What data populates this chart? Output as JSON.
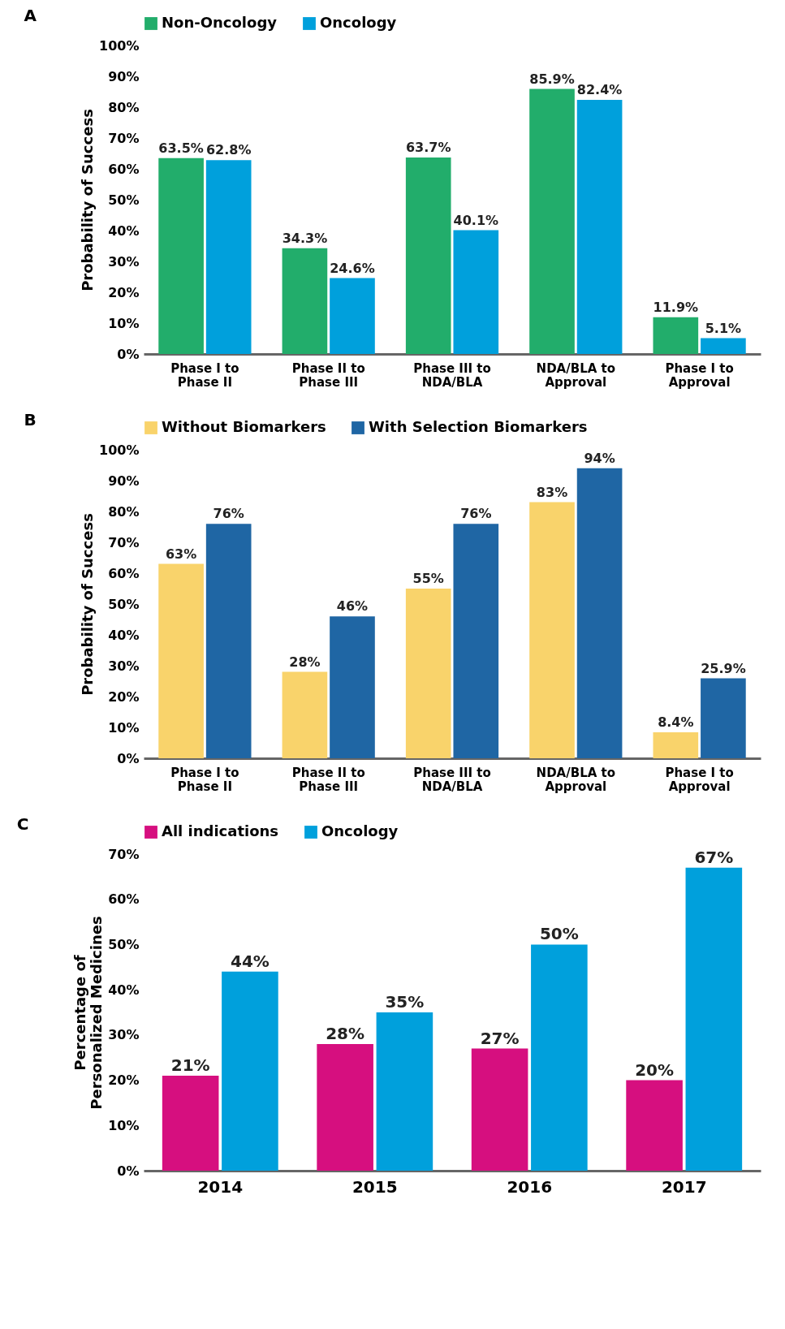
{
  "chart_data": [
    {
      "type": "bar",
      "title": "A",
      "ylabel": "Probability of Success",
      "categories": [
        "Phase I to\nPhase II",
        "Phase II to\nPhase III",
        "Phase III to\nNDA/BLA",
        "NDA/BLA to\nApproval",
        "Phase I to\nApproval"
      ],
      "series": [
        {
          "name": "Non-Oncology",
          "color": "#22ad6b",
          "values": [
            63.5,
            34.3,
            63.7,
            85.9,
            11.9
          ],
          "value_labels": [
            "63.5%",
            "34.3%",
            "63.7%",
            "85.9%",
            "11.9%"
          ]
        },
        {
          "name": "Oncology",
          "color": "#00a0dc",
          "values": [
            62.8,
            24.6,
            40.1,
            82.4,
            5.1
          ],
          "value_labels": [
            "62.8%",
            "24.6%",
            "40.1%",
            "82.4%",
            "5.1%"
          ]
        }
      ],
      "ylim": [
        0,
        100
      ],
      "yticks": [
        {
          "value": 0,
          "label": "0%"
        },
        {
          "value": 10,
          "label": "10%"
        },
        {
          "value": 20,
          "label": "20%"
        },
        {
          "value": 30,
          "label": "30%"
        },
        {
          "value": 40,
          "label": "40%"
        },
        {
          "value": 50,
          "label": "50%"
        },
        {
          "value": 60,
          "label": "60%"
        },
        {
          "value": 70,
          "label": "70%"
        },
        {
          "value": 80,
          "label": "80%"
        },
        {
          "value": 90,
          "label": "90%"
        },
        {
          "value": 100,
          "label": "100%"
        }
      ],
      "legend": "top",
      "grid": false
    },
    {
      "type": "bar",
      "title": "B",
      "ylabel": "Probability of Success",
      "categories": [
        "Phase I to\nPhase II",
        "Phase II to\nPhase III",
        "Phase III to\nNDA/BLA",
        "NDA/BLA to\nApproval",
        "Phase I to\nApproval"
      ],
      "series": [
        {
          "name": "Without Biomarkers",
          "color": "#f9d36b",
          "values": [
            63,
            28,
            55,
            83,
            8.4
          ],
          "value_labels": [
            "63%",
            "28%",
            "55%",
            "83%",
            "8.4%"
          ]
        },
        {
          "name": "With Selection Biomarkers",
          "color": "#1f66a4",
          "values": [
            76,
            46,
            76,
            94,
            25.9
          ],
          "value_labels": [
            "76%",
            "46%",
            "76%",
            "94%",
            "25.9%"
          ]
        }
      ],
      "ylim": [
        0,
        100
      ],
      "yticks": [
        {
          "value": 0,
          "label": "0%"
        },
        {
          "value": 10,
          "label": "10%"
        },
        {
          "value": 20,
          "label": "20%"
        },
        {
          "value": 30,
          "label": "30%"
        },
        {
          "value": 40,
          "label": "40%"
        },
        {
          "value": 50,
          "label": "50%"
        },
        {
          "value": 60,
          "label": "60%"
        },
        {
          "value": 70,
          "label": "70%"
        },
        {
          "value": 80,
          "label": "80%"
        },
        {
          "value": 90,
          "label": "90%"
        },
        {
          "value": 100,
          "label": "100%"
        }
      ],
      "legend": "top",
      "grid": false
    },
    {
      "type": "bar",
      "title": "C",
      "ylabel": "Percentage of\nPersonalized Medicines",
      "categories": [
        "2014",
        "2015",
        "2016",
        "2017"
      ],
      "series": [
        {
          "name": "All indications",
          "color": "#d60f7f",
          "values": [
            21,
            28,
            27,
            20
          ],
          "value_labels": [
            "21%",
            "28%",
            "27%",
            "20%"
          ]
        },
        {
          "name": "Oncology",
          "color": "#00a0dc",
          "values": [
            44,
            35,
            50,
            67
          ],
          "value_labels": [
            "44%",
            "35%",
            "50%",
            "67%"
          ]
        }
      ],
      "ylim": [
        0,
        70
      ],
      "yticks": [
        {
          "value": 0,
          "label": "0%"
        },
        {
          "value": 10,
          "label": "10%"
        },
        {
          "value": 20,
          "label": "20%"
        },
        {
          "value": 30,
          "label": "30%"
        },
        {
          "value": 40,
          "label": "40%"
        },
        {
          "value": 50,
          "label": "50%"
        },
        {
          "value": 60,
          "label": "60%"
        },
        {
          "value": 70,
          "label": "70%"
        }
      ],
      "legend": "top",
      "grid": false
    }
  ]
}
